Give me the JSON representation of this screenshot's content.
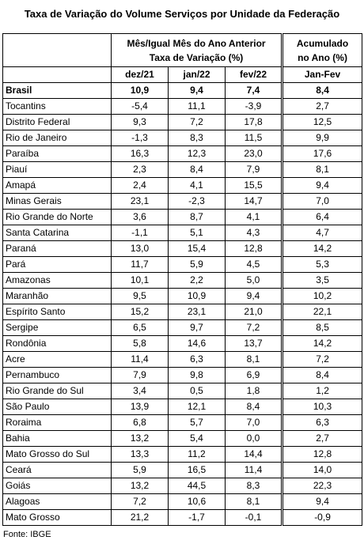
{
  "header": {
    "title": "Taxa de Variação do Volume Serviços por Unidade da Federação"
  },
  "table": {
    "group_header": [
      "Mês/Igual Mês do Ano Anterior",
      "Taxa de Variação (%)"
    ],
    "accumulated_header": [
      "Acumulado",
      "no Ano (%)"
    ],
    "columns": [
      "dez/21",
      "jan/22",
      "fev/22",
      "Jan-Fev"
    ],
    "rows": [
      [
        "Brasil",
        "10,9",
        "9,4",
        "7,4",
        "8,4"
      ],
      [
        "Tocantins",
        "-5,4",
        "11,1",
        "-3,9",
        "2,7"
      ],
      [
        "Distrito Federal",
        "9,3",
        "7,2",
        "17,8",
        "12,5"
      ],
      [
        "Rio de Janeiro",
        "-1,3",
        "8,3",
        "11,5",
        "9,9"
      ],
      [
        "Paraíba",
        "16,3",
        "12,3",
        "23,0",
        "17,6"
      ],
      [
        "Piauí",
        "2,3",
        "8,4",
        "7,9",
        "8,1"
      ],
      [
        "Amapá",
        "2,4",
        "4,1",
        "15,5",
        "9,4"
      ],
      [
        "Minas Gerais",
        "23,1",
        "-2,3",
        "14,7",
        "7,0"
      ],
      [
        "Rio Grande do Norte",
        "3,6",
        "8,7",
        "4,1",
        "6,4"
      ],
      [
        "Santa Catarina",
        "-1,1",
        "5,1",
        "4,3",
        "4,7"
      ],
      [
        "Paraná",
        "13,0",
        "15,4",
        "12,8",
        "14,2"
      ],
      [
        "Pará",
        "11,7",
        "5,9",
        "4,5",
        "5,3"
      ],
      [
        "Amazonas",
        "10,1",
        "2,2",
        "5,0",
        "3,5"
      ],
      [
        "Maranhão",
        "9,5",
        "10,9",
        "9,4",
        "10,2"
      ],
      [
        "Espírito Santo",
        "15,2",
        "23,1",
        "21,0",
        "22,1"
      ],
      [
        "Sergipe",
        "6,5",
        "9,7",
        "7,2",
        "8,5"
      ],
      [
        "Rondônia",
        "5,8",
        "14,6",
        "13,7",
        "14,2"
      ],
      [
        "Acre",
        "11,4",
        "6,3",
        "8,1",
        "7,2"
      ],
      [
        "Pernambuco",
        "7,9",
        "9,8",
        "6,9",
        "8,4"
      ],
      [
        "Rio Grande do Sul",
        "3,4",
        "0,5",
        "1,8",
        "1,2"
      ],
      [
        "São Paulo",
        "13,9",
        "12,1",
        "8,4",
        "10,3"
      ],
      [
        "Roraima",
        "6,8",
        "5,7",
        "7,0",
        "6,3"
      ],
      [
        "Bahia",
        "13,2",
        "5,4",
        "0,0",
        "2,7"
      ],
      [
        "Mato Grosso do Sul",
        "13,3",
        "11,2",
        "14,4",
        "12,8"
      ],
      [
        "Ceará",
        "5,9",
        "16,5",
        "11,4",
        "14,0"
      ],
      [
        "Goiás",
        "13,2",
        "44,5",
        "8,3",
        "22,3"
      ],
      [
        "Alagoas",
        "7,2",
        "10,6",
        "8,1",
        "9,4"
      ],
      [
        "Mato Grosso",
        "21,2",
        "-1,7",
        "-0,1",
        "-0,9"
      ]
    ]
  },
  "footer": {
    "source": "Fonte: IBGE"
  }
}
